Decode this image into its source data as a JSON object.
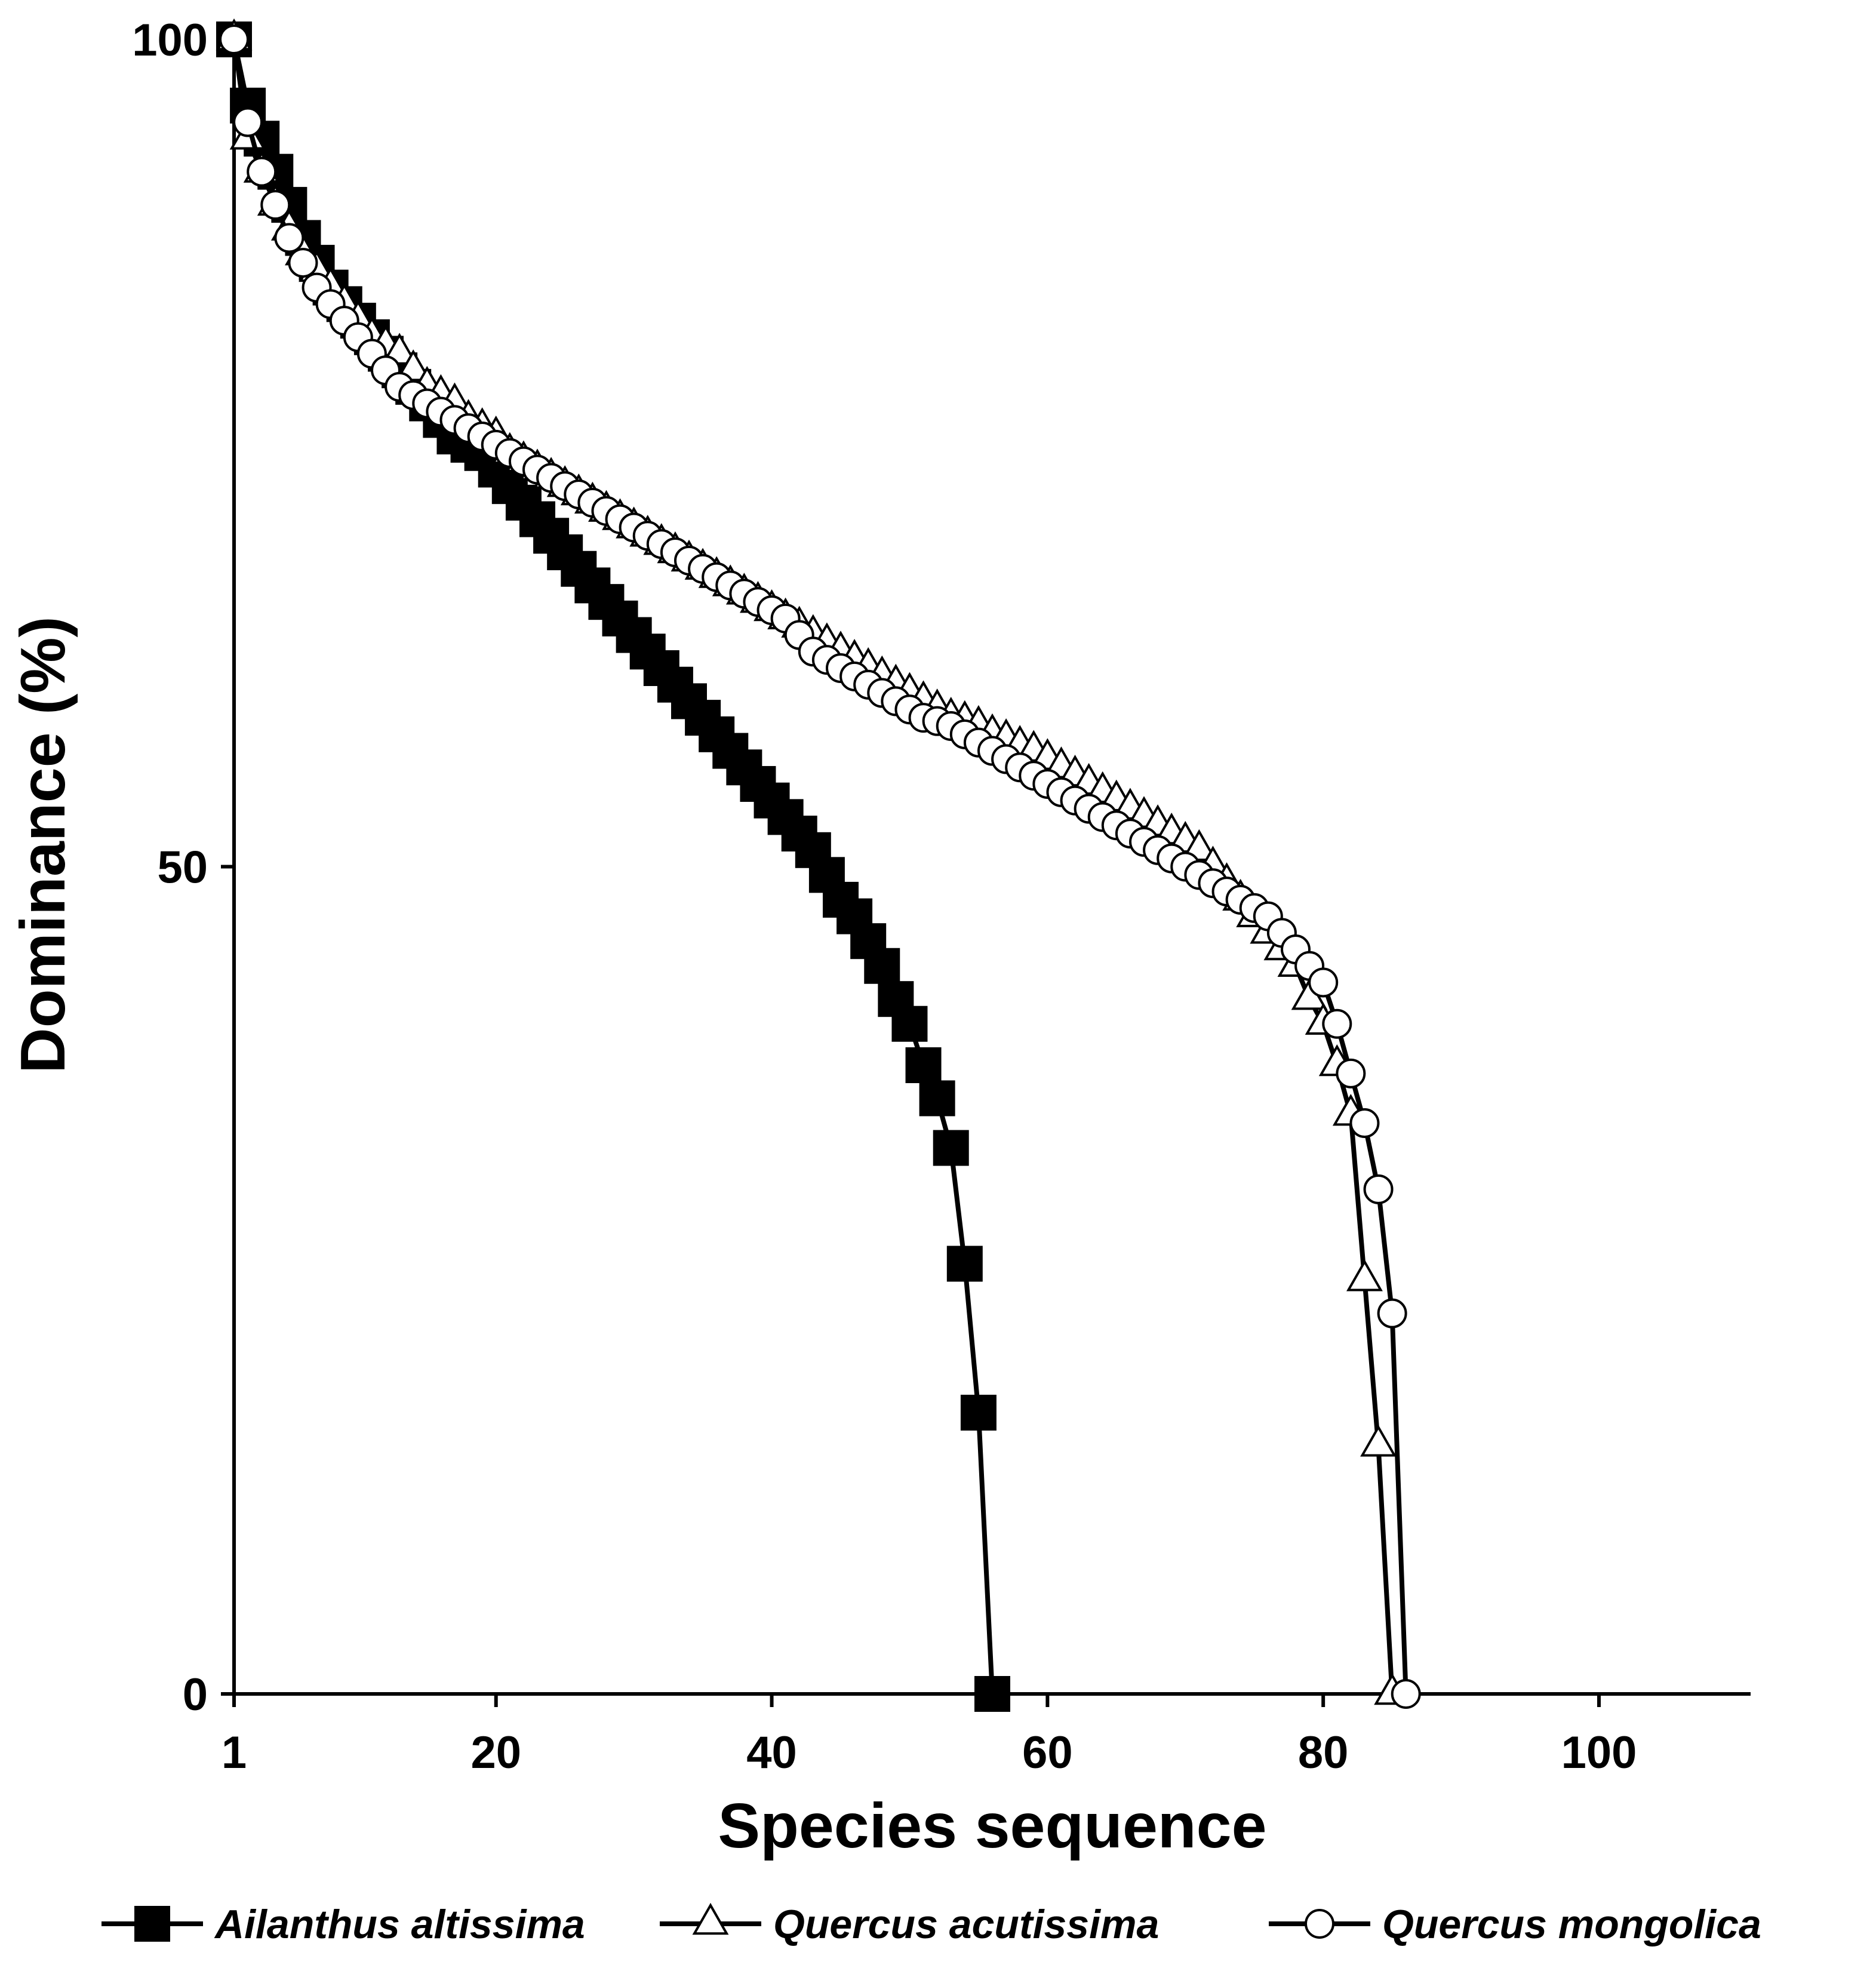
{
  "chart_data": {
    "type": "line",
    "title": "",
    "xlabel": "Species sequence",
    "ylabel": "Dominance (%)",
    "xlim": [
      1,
      111
    ],
    "ylim": [
      0,
      100
    ],
    "xticks": [
      1,
      20,
      40,
      60,
      80,
      100
    ],
    "xtick_labels": [
      "1",
      "20",
      "40",
      "60",
      "80",
      "100"
    ],
    "yticks": [
      0,
      50,
      100
    ],
    "ytick_labels": [
      "0",
      "50",
      "100"
    ],
    "grid": false,
    "legend_position": "bottom",
    "series": [
      {
        "name": "Ailanthus altissima",
        "marker": "filled-square",
        "x": [
          1,
          2,
          3,
          4,
          5,
          6,
          7,
          8,
          9,
          10,
          11,
          12,
          13,
          14,
          15,
          16,
          17,
          18,
          19,
          20,
          21,
          22,
          23,
          24,
          25,
          26,
          27,
          28,
          29,
          30,
          31,
          32,
          33,
          34,
          35,
          36,
          37,
          38,
          39,
          40,
          41,
          42,
          43,
          44,
          45,
          46,
          47,
          48,
          49,
          50,
          51,
          52,
          53,
          54,
          55,
          56
        ],
        "y": [
          100,
          96,
          94,
          92,
          90,
          88,
          86.5,
          85,
          84,
          83,
          82,
          81,
          80,
          79,
          78,
          77,
          76,
          75.5,
          75,
          74,
          73,
          72,
          71,
          70,
          69,
          68,
          67,
          66,
          65,
          64,
          63,
          62,
          61,
          60,
          59,
          58,
          57,
          56,
          55,
          54,
          53,
          52,
          51,
          49.5,
          48,
          47,
          45.5,
          44,
          42,
          40.5,
          38,
          36,
          33,
          26,
          17,
          0
        ]
      },
      {
        "name": "Quercus acutissima",
        "marker": "open-triangle",
        "x": [
          1,
          2,
          3,
          4,
          5,
          6,
          7,
          8,
          9,
          10,
          11,
          12,
          13,
          14,
          15,
          16,
          17,
          18,
          19,
          20,
          21,
          22,
          23,
          24,
          25,
          26,
          27,
          28,
          29,
          30,
          31,
          32,
          33,
          34,
          35,
          36,
          37,
          38,
          39,
          40,
          41,
          42,
          43,
          44,
          45,
          46,
          47,
          48,
          49,
          50,
          51,
          52,
          53,
          54,
          55,
          56,
          57,
          58,
          59,
          60,
          61,
          62,
          63,
          64,
          65,
          66,
          67,
          68,
          69,
          70,
          71,
          72,
          73,
          74,
          75,
          76,
          77,
          78,
          79,
          80,
          81,
          82,
          83,
          84,
          85
        ],
        "y": [
          100,
          94,
          92,
          90,
          88.5,
          87,
          86,
          85,
          84,
          83,
          82,
          81.5,
          81,
          80,
          79,
          78.5,
          78,
          77,
          76.5,
          76,
          75,
          74.5,
          74,
          73.5,
          73,
          72.5,
          72,
          71.5,
          71,
          70.5,
          70,
          69.5,
          69,
          68.5,
          68,
          67.5,
          67,
          66.5,
          66,
          65.5,
          65,
          64.5,
          64,
          63.5,
          63,
          62.5,
          62,
          61.5,
          61,
          60.5,
          60,
          59.5,
          59,
          58.8,
          58.5,
          58,
          57.7,
          57.3,
          57,
          56.5,
          56,
          55.5,
          55,
          54.5,
          54,
          53.5,
          53,
          52.5,
          52,
          51.5,
          51,
          50,
          49,
          48,
          47,
          46,
          45,
          44,
          42,
          40.5,
          38,
          35,
          25,
          15,
          0
        ]
      },
      {
        "name": "Quercus mongolica",
        "marker": "open-circle",
        "x": [
          1,
          2,
          3,
          4,
          5,
          6,
          7,
          8,
          9,
          10,
          11,
          12,
          13,
          14,
          15,
          16,
          17,
          18,
          19,
          20,
          21,
          22,
          23,
          24,
          25,
          26,
          27,
          28,
          29,
          30,
          31,
          32,
          33,
          34,
          35,
          36,
          37,
          38,
          39,
          40,
          41,
          42,
          43,
          44,
          45,
          46,
          47,
          48,
          49,
          50,
          51,
          52,
          53,
          54,
          55,
          56,
          57,
          58,
          59,
          60,
          61,
          62,
          63,
          64,
          65,
          66,
          67,
          68,
          69,
          70,
          71,
          72,
          73,
          74,
          75,
          76,
          77,
          78,
          79,
          80,
          81,
          82,
          83,
          84,
          85,
          86
        ],
        "y": [
          100,
          95,
          92,
          90,
          88,
          86.5,
          85,
          84,
          83,
          82,
          81,
          80,
          79,
          78.5,
          78,
          77.5,
          77,
          76.5,
          76,
          75.5,
          75,
          74.5,
          74,
          73.5,
          73,
          72.5,
          72,
          71.5,
          71,
          70.5,
          70,
          69.5,
          69,
          68.5,
          68,
          67.5,
          67,
          66.5,
          66,
          65.5,
          65,
          64,
          63,
          62.5,
          62,
          61.5,
          61,
          60.5,
          60,
          59.5,
          59,
          58.8,
          58.5,
          58,
          57.5,
          57,
          56.5,
          56,
          55.5,
          55,
          54.5,
          54,
          53.5,
          53,
          52.5,
          52,
          51.5,
          51,
          50.5,
          50,
          49.5,
          49,
          48.5,
          48,
          47.5,
          47,
          46,
          45,
          44,
          43,
          40.5,
          37.5,
          34.5,
          30.5,
          23,
          0
        ]
      }
    ]
  }
}
